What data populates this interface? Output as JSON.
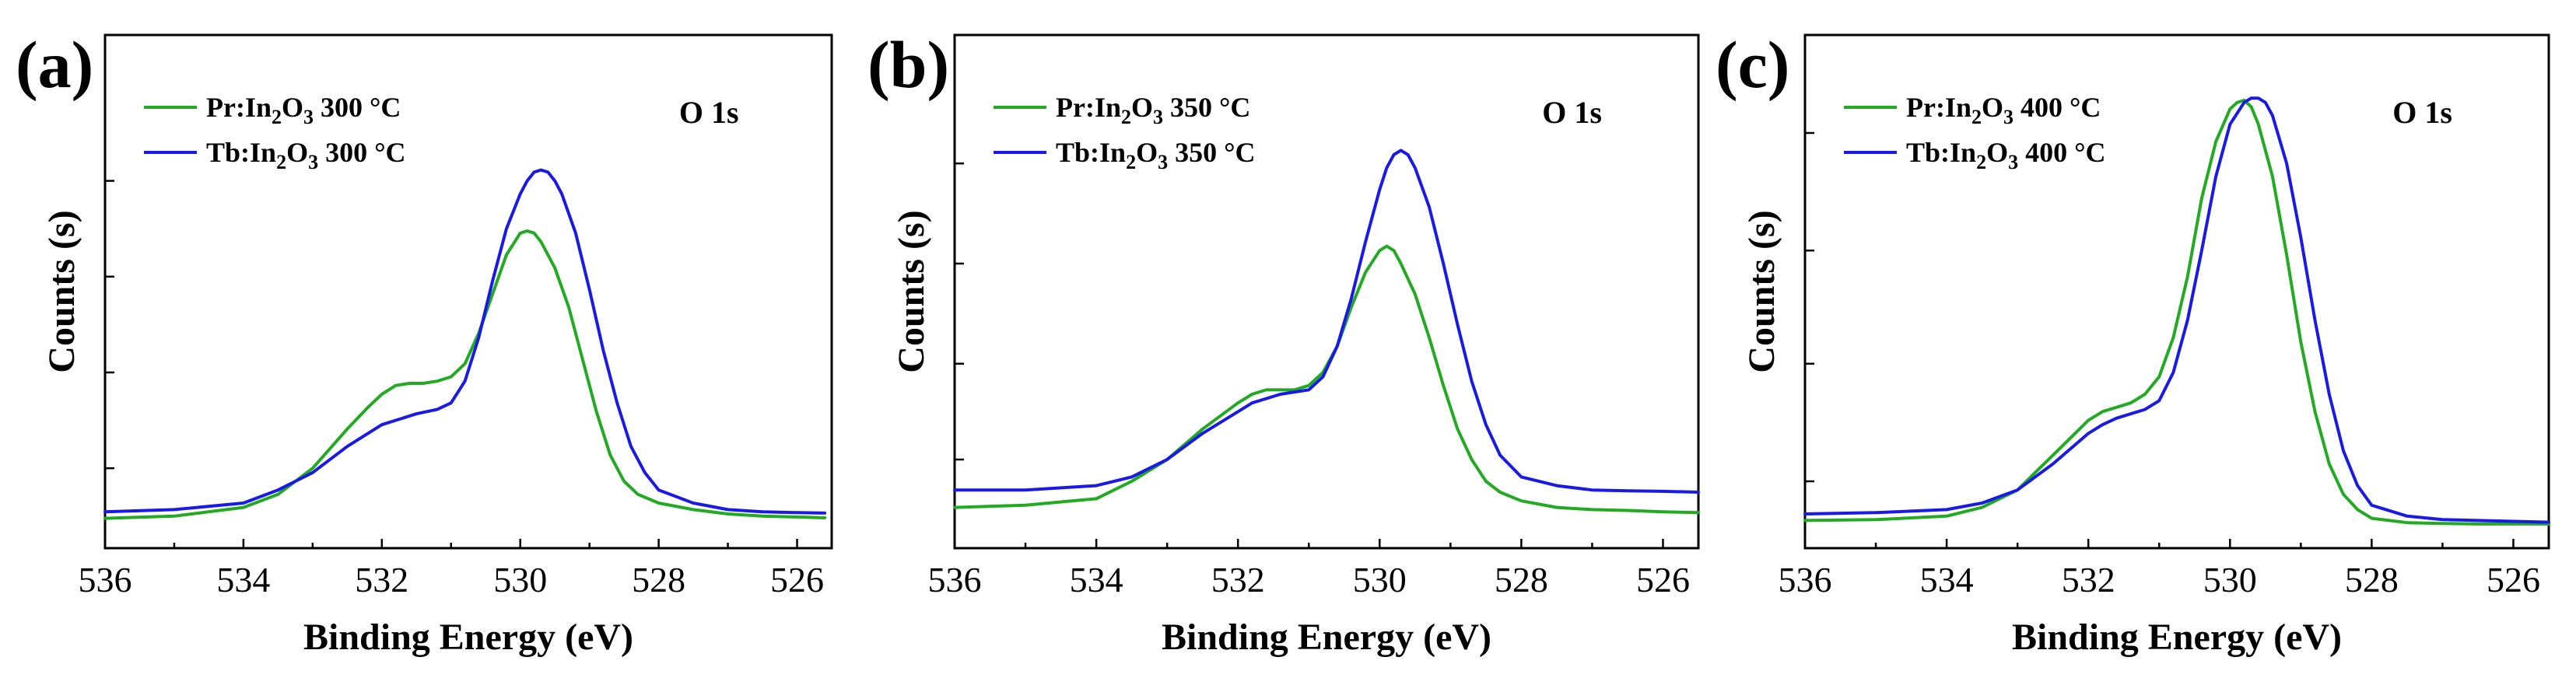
{
  "chart_data": [
    {
      "type": "line",
      "panel_label": "(a)",
      "annotation": "O 1s",
      "xlabel": "Binding Energy (eV)",
      "ylabel": "Counts (s)",
      "xlim": [
        536,
        525.5
      ],
      "ylim": [
        0,
        1
      ],
      "x_ticks": [
        536,
        534,
        532,
        530,
        528,
        526
      ],
      "y_ticks": [
        0.13,
        0.35,
        0.57,
        0.79
      ],
      "legend_position": "top-left",
      "series": [
        {
          "name": "Pr:In2O3 300 oC",
          "label_prefix": "Pr:In",
          "sub1": "2",
          "label_mid": "O",
          "sub2": "3",
          "label_suffix": " 300 °C",
          "color": "#22aa22",
          "x": [
            536,
            535,
            534,
            533.5,
            533,
            532.5,
            532.2,
            532,
            531.8,
            531.6,
            531.4,
            531.2,
            531,
            530.8,
            530.6,
            530.4,
            530.2,
            530,
            529.9,
            529.8,
            529.7,
            529.5,
            529.3,
            529.1,
            528.9,
            528.7,
            528.5,
            528.3,
            528,
            527.5,
            527,
            526.5,
            526,
            525.6
          ],
          "y": [
            0.015,
            0.02,
            0.04,
            0.07,
            0.13,
            0.22,
            0.27,
            0.3,
            0.32,
            0.325,
            0.325,
            0.33,
            0.34,
            0.37,
            0.44,
            0.53,
            0.62,
            0.67,
            0.675,
            0.67,
            0.65,
            0.59,
            0.5,
            0.38,
            0.26,
            0.16,
            0.1,
            0.07,
            0.05,
            0.035,
            0.025,
            0.02,
            0.018,
            0.016
          ]
        },
        {
          "name": "Tb:In2O3 300 oC",
          "label_prefix": "Tb:In",
          "sub1": "2",
          "label_mid": "O",
          "sub2": "3",
          "label_suffix": " 300 °C",
          "color": "#1a1ae6",
          "x": [
            536,
            535,
            534,
            533.5,
            533,
            532.5,
            532,
            531.5,
            531.2,
            531,
            530.8,
            530.6,
            530.4,
            530.2,
            530,
            529.9,
            529.8,
            529.7,
            529.6,
            529.5,
            529.4,
            529.2,
            529,
            528.8,
            528.6,
            528.4,
            528.2,
            528,
            527.5,
            527,
            526.5,
            526,
            525.6
          ],
          "y": [
            0.03,
            0.035,
            0.05,
            0.08,
            0.12,
            0.18,
            0.23,
            0.255,
            0.265,
            0.28,
            0.33,
            0.43,
            0.56,
            0.68,
            0.76,
            0.79,
            0.81,
            0.815,
            0.81,
            0.79,
            0.76,
            0.67,
            0.54,
            0.4,
            0.28,
            0.18,
            0.12,
            0.08,
            0.05,
            0.035,
            0.03,
            0.028,
            0.027
          ]
        }
      ]
    },
    {
      "type": "line",
      "panel_label": "(b)",
      "annotation": "O 1s",
      "xlabel": "Binding Energy (eV)",
      "ylabel": "Counts (s)",
      "xlim": [
        536,
        525.5
      ],
      "ylim": [
        0,
        1
      ],
      "x_ticks": [
        536,
        534,
        532,
        530,
        528,
        526
      ],
      "y_ticks": [
        0.15,
        0.37,
        0.6,
        0.83
      ],
      "legend_position": "top-left",
      "series": [
        {
          "name": "Pr:In2O3 350 oC",
          "label_prefix": "Pr:In",
          "sub1": "2",
          "label_mid": "O",
          "sub2": "3",
          "label_suffix": " 350 °C",
          "color": "#22aa22",
          "x": [
            536,
            535,
            534,
            533.5,
            533,
            532.5,
            532,
            531.8,
            531.6,
            531.4,
            531.2,
            531,
            530.8,
            530.6,
            530.4,
            530.2,
            530,
            529.9,
            529.8,
            529.7,
            529.5,
            529.3,
            529.1,
            528.9,
            528.7,
            528.5,
            528.3,
            528,
            527.5,
            527,
            526.5,
            526,
            525.5
          ],
          "y": [
            0.04,
            0.045,
            0.06,
            0.1,
            0.15,
            0.22,
            0.28,
            0.3,
            0.31,
            0.31,
            0.31,
            0.32,
            0.35,
            0.41,
            0.5,
            0.58,
            0.63,
            0.64,
            0.63,
            0.6,
            0.53,
            0.43,
            0.32,
            0.22,
            0.15,
            0.1,
            0.075,
            0.055,
            0.04,
            0.035,
            0.033,
            0.03,
            0.028
          ]
        },
        {
          "name": "Tb:In2O3 350 oC",
          "label_prefix": "Tb:In",
          "sub1": "2",
          "label_mid": "O",
          "sub2": "3",
          "label_suffix": " 350 °C",
          "color": "#1a1ae6",
          "x": [
            536,
            535,
            534,
            533.5,
            533,
            532.5,
            532,
            531.8,
            531.6,
            531.4,
            531.2,
            531,
            530.8,
            530.6,
            530.4,
            530.2,
            530,
            529.9,
            529.8,
            529.7,
            529.6,
            529.5,
            529.3,
            529.1,
            528.9,
            528.7,
            528.5,
            528.3,
            528,
            527.5,
            527,
            526.5,
            526,
            525.5
          ],
          "y": [
            0.08,
            0.08,
            0.09,
            0.11,
            0.15,
            0.21,
            0.26,
            0.28,
            0.29,
            0.3,
            0.305,
            0.31,
            0.34,
            0.41,
            0.52,
            0.65,
            0.77,
            0.82,
            0.85,
            0.86,
            0.85,
            0.82,
            0.73,
            0.6,
            0.46,
            0.33,
            0.23,
            0.16,
            0.11,
            0.09,
            0.08,
            0.078,
            0.077,
            0.075
          ]
        }
      ]
    },
    {
      "type": "line",
      "panel_label": "(c)",
      "annotation": "O 1s",
      "xlabel": "Binding Energy (eV)",
      "ylabel": "Counts (s)",
      "xlim": [
        536,
        525.5
      ],
      "ylim": [
        0,
        1
      ],
      "x_ticks": [
        536,
        534,
        532,
        530,
        528,
        526
      ],
      "y_ticks": [
        0.1,
        0.37,
        0.63,
        0.9
      ],
      "legend_position": "top-left",
      "series": [
        {
          "name": "Pr:In2O3 400 oC",
          "label_prefix": "Pr:In",
          "sub1": "2",
          "label_mid": "O",
          "sub2": "3",
          "label_suffix": "  400 °C",
          "color": "#22aa22",
          "x": [
            536,
            535,
            534,
            533.5,
            533,
            532.5,
            532,
            531.8,
            531.6,
            531.4,
            531.2,
            531,
            530.8,
            530.6,
            530.4,
            530.2,
            530,
            529.9,
            529.8,
            529.7,
            529.6,
            529.4,
            529.2,
            529,
            528.8,
            528.6,
            528.4,
            528.2,
            528,
            527.5,
            527,
            526.5,
            526,
            525.5
          ],
          "y": [
            0.01,
            0.012,
            0.02,
            0.04,
            0.08,
            0.16,
            0.24,
            0.26,
            0.27,
            0.28,
            0.3,
            0.34,
            0.43,
            0.57,
            0.75,
            0.88,
            0.955,
            0.97,
            0.975,
            0.96,
            0.92,
            0.8,
            0.62,
            0.42,
            0.26,
            0.14,
            0.07,
            0.035,
            0.015,
            0.005,
            0.003,
            0.002,
            0.002,
            0.002
          ]
        },
        {
          "name": "Tb:In2O3 400 oC",
          "label_prefix": "Tb:In",
          "sub1": "2",
          "label_mid": "O",
          "sub2": "3",
          "label_suffix": " 400 °C",
          "color": "#1a1ae6",
          "x": [
            536,
            535,
            534,
            533.5,
            533,
            532.5,
            532,
            531.8,
            531.6,
            531.4,
            531.2,
            531,
            530.8,
            530.6,
            530.4,
            530.2,
            530,
            529.8,
            529.7,
            529.6,
            529.5,
            529.4,
            529.2,
            529,
            528.8,
            528.6,
            528.4,
            528.2,
            528,
            527.5,
            527,
            526.5,
            526,
            525.5
          ],
          "y": [
            0.025,
            0.028,
            0.035,
            0.05,
            0.08,
            0.14,
            0.21,
            0.23,
            0.245,
            0.255,
            0.265,
            0.285,
            0.35,
            0.47,
            0.63,
            0.8,
            0.92,
            0.97,
            0.98,
            0.98,
            0.97,
            0.94,
            0.83,
            0.66,
            0.47,
            0.3,
            0.17,
            0.09,
            0.045,
            0.02,
            0.012,
            0.01,
            0.008,
            0.006
          ]
        }
      ]
    }
  ]
}
